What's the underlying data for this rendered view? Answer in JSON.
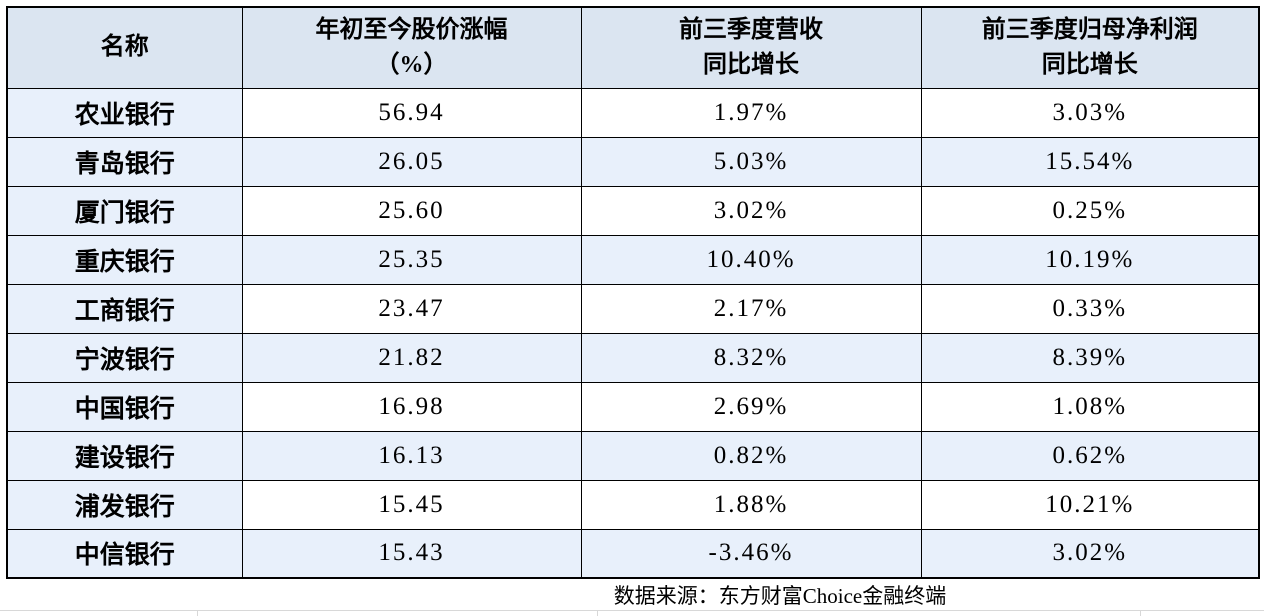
{
  "chart_data": {
    "type": "table",
    "columns": [
      "名称",
      "年初至今股价涨幅（%）",
      "前三季度营收同比增长",
      "前三季度归母净利润同比增长"
    ],
    "rows": [
      [
        "农业银行",
        "56.94",
        "1.97%",
        "3.03%"
      ],
      [
        "青岛银行",
        "26.05",
        "5.03%",
        "15.54%"
      ],
      [
        "厦门银行",
        "25.60",
        "3.02%",
        "0.25%"
      ],
      [
        "重庆银行",
        "25.35",
        "10.40%",
        "10.19%"
      ],
      [
        "工商银行",
        "23.47",
        "2.17%",
        "0.33%"
      ],
      [
        "宁波银行",
        "21.82",
        "8.32%",
        "8.39%"
      ],
      [
        "中国银行",
        "16.98",
        "2.69%",
        "1.08%"
      ],
      [
        "建设银行",
        "16.13",
        "0.82%",
        "0.62%"
      ],
      [
        "浦发银行",
        "15.45",
        "1.88%",
        "10.21%"
      ],
      [
        "中信银行",
        "15.43",
        "-3.46%",
        "3.02%"
      ]
    ],
    "source": "数据来源：东方财富Choice金融终端"
  },
  "table": {
    "header": {
      "name": "名称",
      "ytd_line1": "年初至今股价涨幅",
      "ytd_line2": "（%）",
      "revenue_line1": "前三季度营收",
      "revenue_line2": "同比增长",
      "profit_line1": "前三季度归母净利润",
      "profit_line2": "同比增长"
    },
    "rows": [
      {
        "name": "农业银行",
        "ytd": "56.94",
        "revenue": "1.97%",
        "profit": "3.03%"
      },
      {
        "name": "青岛银行",
        "ytd": "26.05",
        "revenue": "5.03%",
        "profit": "15.54%"
      },
      {
        "name": "厦门银行",
        "ytd": "25.60",
        "revenue": "3.02%",
        "profit": "0.25%"
      },
      {
        "name": "重庆银行",
        "ytd": "25.35",
        "revenue": "10.40%",
        "profit": "10.19%"
      },
      {
        "name": "工商银行",
        "ytd": "23.47",
        "revenue": "2.17%",
        "profit": "0.33%"
      },
      {
        "name": "宁波银行",
        "ytd": "21.82",
        "revenue": "8.32%",
        "profit": "8.39%"
      },
      {
        "name": "中国银行",
        "ytd": "16.98",
        "revenue": "2.69%",
        "profit": "1.08%"
      },
      {
        "name": "建设银行",
        "ytd": "16.13",
        "revenue": "0.82%",
        "profit": "0.62%"
      },
      {
        "name": "浦发银行",
        "ytd": "15.45",
        "revenue": "1.88%",
        "profit": "10.21%"
      },
      {
        "name": "中信银行",
        "ytd": "15.43",
        "revenue": "-3.46%",
        "profit": "3.02%"
      }
    ],
    "source": "数据来源：东方财富Choice金融终端"
  },
  "colors": {
    "header_bg": "#dbe5f1",
    "band_bg": "#e8f0fb",
    "row_bg": "#ffffff",
    "border": "#000000",
    "sheet_gridline": "#d8d8d8",
    "text": "#000000"
  }
}
